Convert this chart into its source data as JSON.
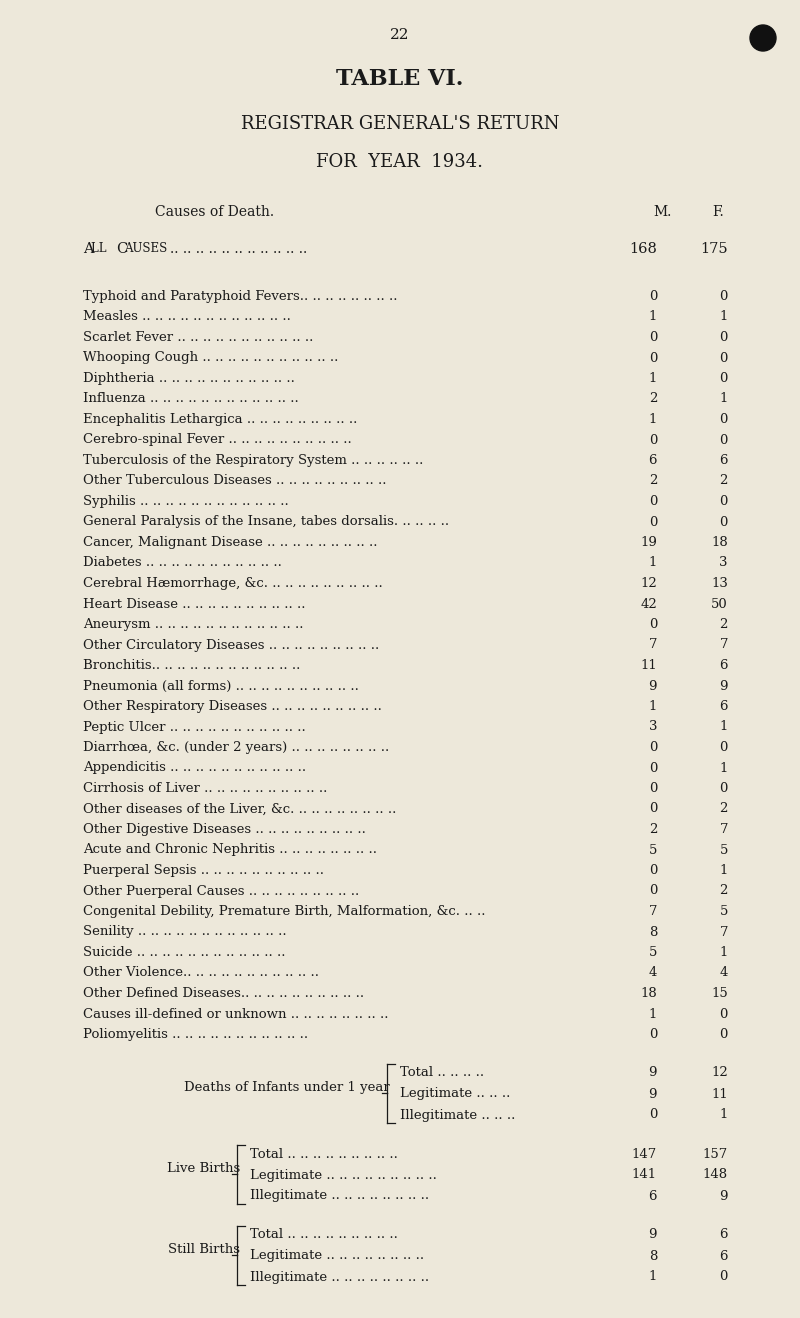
{
  "page_number": "22",
  "title1": "TABLE VI.",
  "title2": "REGISTRAR GENERAL'S RETURN",
  "title3": "FOR  YEAR  1934.",
  "col_header_cause": "Causes of Death.",
  "col_header_m": "M.",
  "col_header_f": "F.",
  "background_color": "#ede8da",
  "text_color": "#1a1a1a",
  "rows": [
    {
      "label": "Typhoid and Paratyphoid Fevers.. .. .. .. .. .. .. ..",
      "m": "0",
      "f": "0"
    },
    {
      "label": "Measles .. .. .. .. .. .. .. .. .. .. .. ..",
      "m": "1",
      "f": "1"
    },
    {
      "label": "Scarlet Fever .. .. .. .. .. .. .. .. .. .. ..",
      "m": "0",
      "f": "0"
    },
    {
      "label": "Whooping Cough .. .. .. .. .. .. .. .. .. .. ..",
      "m": "0",
      "f": "0"
    },
    {
      "label": "Diphtheria .. .. .. .. .. .. .. .. .. .. ..",
      "m": "1",
      "f": "0"
    },
    {
      "label": "Influenza .. .. .. .. .. .. .. .. .. .. .. ..",
      "m": "2",
      "f": "1"
    },
    {
      "label": "Encephalitis Lethargica .. .. .. .. .. .. .. .. ..",
      "m": "1",
      "f": "0"
    },
    {
      "label": "Cerebro-spinal Fever .. .. .. .. .. .. .. .. .. ..",
      "m": "0",
      "f": "0"
    },
    {
      "label": "Tuberculosis of the Respiratory System .. .. .. .. .. ..",
      "m": "6",
      "f": "6"
    },
    {
      "label": "Other Tuberculous Diseases .. .. .. .. .. .. .. .. ..",
      "m": "2",
      "f": "2"
    },
    {
      "label": "Syphilis .. .. .. .. .. .. .. .. .. .. .. ..",
      "m": "0",
      "f": "0"
    },
    {
      "label": "General Paralysis of the Insane, tabes dorsalis. .. .. .. ..",
      "m": "0",
      "f": "0"
    },
    {
      "label": "Cancer, Malignant Disease .. .. .. .. .. .. .. .. ..",
      "m": "19",
      "f": "18"
    },
    {
      "label": "Diabetes .. .. .. .. .. .. .. .. .. .. ..",
      "m": "1",
      "f": "3"
    },
    {
      "label": "Cerebral Hæmorrhage, &c. .. .. .. .. .. .. .. .. ..",
      "m": "12",
      "f": "13"
    },
    {
      "label": "Heart Disease .. .. .. .. .. .. .. .. .. ..",
      "m": "42",
      "f": "50"
    },
    {
      "label": "Aneurysm .. .. .. .. .. .. .. .. .. .. .. ..",
      "m": "0",
      "f": "2"
    },
    {
      "label": "Other Circulatory Diseases .. .. .. .. .. .. .. .. ..",
      "m": "7",
      "f": "7"
    },
    {
      "label": "Bronchitis.. .. .. .. .. .. .. .. .. .. .. ..",
      "m": "11",
      "f": "6"
    },
    {
      "label": "Pneumonia (all forms) .. .. .. .. .. .. .. .. .. ..",
      "m": "9",
      "f": "9"
    },
    {
      "label": "Other Respiratory Diseases .. .. .. .. .. .. .. .. ..",
      "m": "1",
      "f": "6"
    },
    {
      "label": "Peptic Ulcer .. .. .. .. .. .. .. .. .. .. ..",
      "m": "3",
      "f": "1"
    },
    {
      "label": "Diarrhœa, &c. (under 2 years) .. .. .. .. .. .. .. ..",
      "m": "0",
      "f": "0"
    },
    {
      "label": "Appendicitis .. .. .. .. .. .. .. .. .. .. ..",
      "m": "0",
      "f": "1"
    },
    {
      "label": "Cirrhosis of Liver .. .. .. .. .. .. .. .. .. ..",
      "m": "0",
      "f": "0"
    },
    {
      "label": "Other diseases of the Liver, &c. .. .. .. .. .. .. .. ..",
      "m": "0",
      "f": "2"
    },
    {
      "label": "Other Digestive Diseases .. .. .. .. .. .. .. .. ..",
      "m": "2",
      "f": "7"
    },
    {
      "label": "Acute and Chronic Nephritis .. .. .. .. .. .. .. ..",
      "m": "5",
      "f": "5"
    },
    {
      "label": "Puerperal Sepsis .. .. .. .. .. .. .. .. .. ..",
      "m": "0",
      "f": "1"
    },
    {
      "label": "Other Puerperal Causes .. .. .. .. .. .. .. .. ..",
      "m": "0",
      "f": "2"
    },
    {
      "label": "Congenital Debility, Premature Birth, Malformation, &c. .. ..",
      "m": "7",
      "f": "5"
    },
    {
      "label": "Senility .. .. .. .. .. .. .. .. .. .. .. ..",
      "m": "8",
      "f": "7"
    },
    {
      "label": "Suicide .. .. .. .. .. .. .. .. .. .. .. ..",
      "m": "5",
      "f": "1"
    },
    {
      "label": "Other Violence.. .. .. .. .. .. .. .. .. .. ..",
      "m": "4",
      "f": "4"
    },
    {
      "label": "Other Defined Diseases.. .. .. .. .. .. .. .. .. ..",
      "m": "18",
      "f": "15"
    },
    {
      "label": "Causes ill-defined or unknown .. .. .. .. .. .. .. ..",
      "m": "1",
      "f": "0"
    },
    {
      "label": "Poliomyelitis .. .. .. .. .. .. .. .. .. .. ..",
      "m": "0",
      "f": "0"
    }
  ],
  "grouped_rows": [
    {
      "group_label": "Deaths of Infants under 1 year",
      "sub_rows": [
        {
          "sub_label": "Total .. .. .. ..",
          "m": "9",
          "f": "12"
        },
        {
          "sub_label": "Legitimate .. .. ..",
          "m": "9",
          "f": "11"
        },
        {
          "sub_label": "Illegitimate .. .. ..",
          "m": "0",
          "f": "1"
        }
      ]
    },
    {
      "group_label": "Live Births",
      "sub_rows": [
        {
          "sub_label": "Total .. .. .. .. .. .. .. .. ..",
          "m": "147",
          "f": "157"
        },
        {
          "sub_label": "Legitimate .. .. .. .. .. .. .. .. ..",
          "m": "141",
          "f": "148"
        },
        {
          "sub_label": "Illegitimate .. .. .. .. .. .. .. ..",
          "m": "6",
          "f": "9"
        }
      ]
    },
    {
      "group_label": "Still Births",
      "sub_rows": [
        {
          "sub_label": "Total .. .. .. .. .. .. .. .. ..",
          "m": "9",
          "f": "6"
        },
        {
          "sub_label": "Legitimate .. .. .. .. .. .. .. ..",
          "m": "8",
          "f": "6"
        },
        {
          "sub_label": "Illegitimate .. .. .. .. .. .. .. ..",
          "m": "1",
          "f": "0"
        }
      ]
    }
  ],
  "all_causes_m": "168",
  "all_causes_f": "175"
}
